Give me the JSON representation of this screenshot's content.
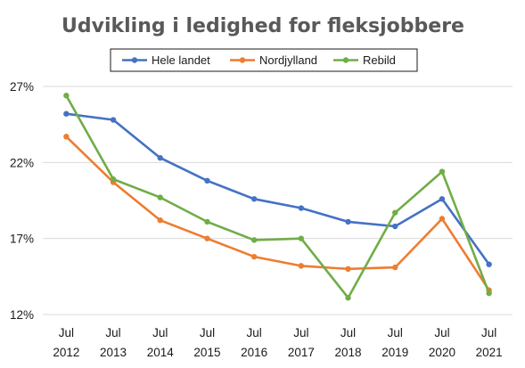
{
  "chart_data": {
    "type": "line",
    "title": "Udvikling i ledighed for fleksjobbere",
    "xlabel": "",
    "ylabel": "",
    "categories": [
      [
        "Jul",
        "2012"
      ],
      [
        "Jul",
        "2013"
      ],
      [
        "Jul",
        "2014"
      ],
      [
        "Jul",
        "2015"
      ],
      [
        "Jul",
        "2016"
      ],
      [
        "Jul",
        "2017"
      ],
      [
        "Jul",
        "2018"
      ],
      [
        "Jul",
        "2019"
      ],
      [
        "Jul",
        "2020"
      ],
      [
        "Jul",
        "2021"
      ]
    ],
    "yticks": [
      12,
      17,
      22,
      27
    ],
    "ytick_labels": [
      "12%",
      "17%",
      "22%",
      "27%"
    ],
    "ylim": [
      12,
      27
    ],
    "grid": true,
    "legend": "top",
    "series": [
      {
        "name": "Hele landet",
        "color": "#4472c4",
        "values": [
          25.2,
          24.8,
          22.3,
          20.8,
          19.6,
          19.0,
          18.1,
          17.8,
          19.6,
          15.3
        ]
      },
      {
        "name": "Nordjylland",
        "color": "#ed7d31",
        "values": [
          23.7,
          20.7,
          18.2,
          17.0,
          15.8,
          15.2,
          15.0,
          15.1,
          18.3,
          13.6
        ]
      },
      {
        "name": "Rebild",
        "color": "#70ad47",
        "values": [
          26.4,
          20.9,
          19.7,
          18.1,
          16.9,
          17.0,
          13.1,
          18.7,
          21.4,
          13.4
        ]
      }
    ]
  }
}
